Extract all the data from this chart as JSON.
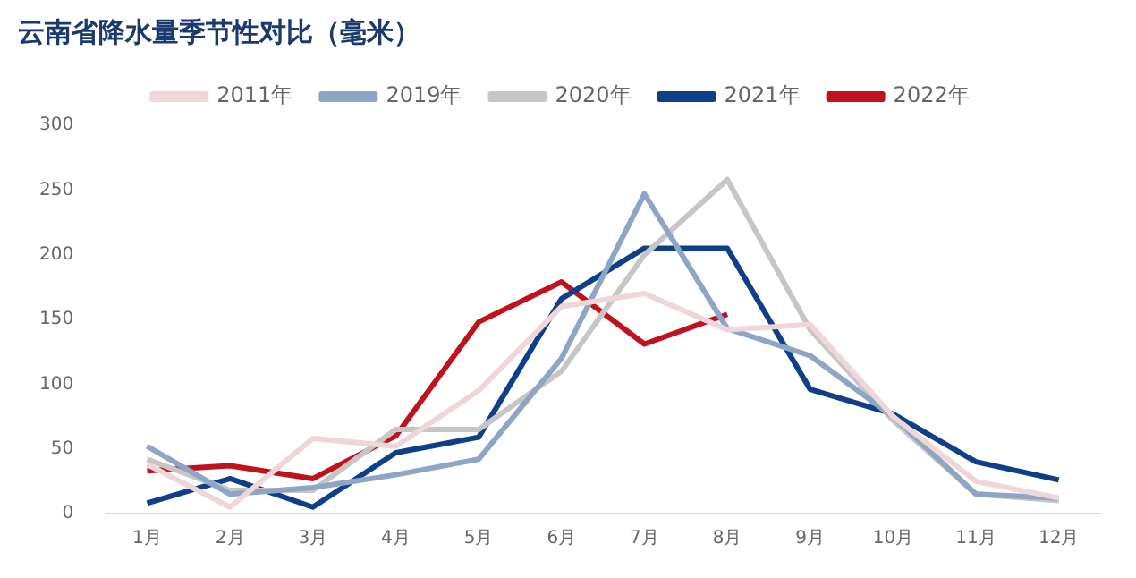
{
  "chart_data": {
    "type": "line",
    "title": "云南省降水量季节性对比（毫米）",
    "categories": [
      "1月",
      "2月",
      "3月",
      "4月",
      "5月",
      "6月",
      "7月",
      "8月",
      "9月",
      "10月",
      "11月",
      "12月"
    ],
    "series": [
      {
        "name": "2011年",
        "color": "#efd6d8",
        "values": [
          38,
          5,
          58,
          52,
          95,
          160,
          170,
          142,
          146,
          75,
          25,
          12
        ]
      },
      {
        "name": "2019年",
        "color": "#8ea6c6",
        "values": [
          52,
          15,
          20,
          30,
          42,
          120,
          247,
          143,
          122,
          75,
          15,
          12
        ]
      },
      {
        "name": "2020年",
        "color": "#c6c6c6",
        "values": [
          42,
          18,
          18,
          65,
          65,
          110,
          200,
          258,
          142,
          72,
          15,
          10
        ]
      },
      {
        "name": "2021年",
        "color": "#0e3f89",
        "values": [
          8,
          27,
          5,
          47,
          59,
          166,
          205,
          205,
          96,
          77,
          40,
          26
        ]
      },
      {
        "name": "2022年",
        "color": "#c0121d",
        "values": [
          33,
          37,
          27,
          60,
          148,
          179,
          131,
          154,
          null,
          null,
          null,
          null
        ]
      }
    ],
    "ylim": [
      0,
      300
    ],
    "yticks": [
      0,
      50,
      100,
      150,
      200,
      250,
      300
    ],
    "grid": false,
    "legend": "top",
    "marker": "none",
    "line_style": "solid"
  }
}
